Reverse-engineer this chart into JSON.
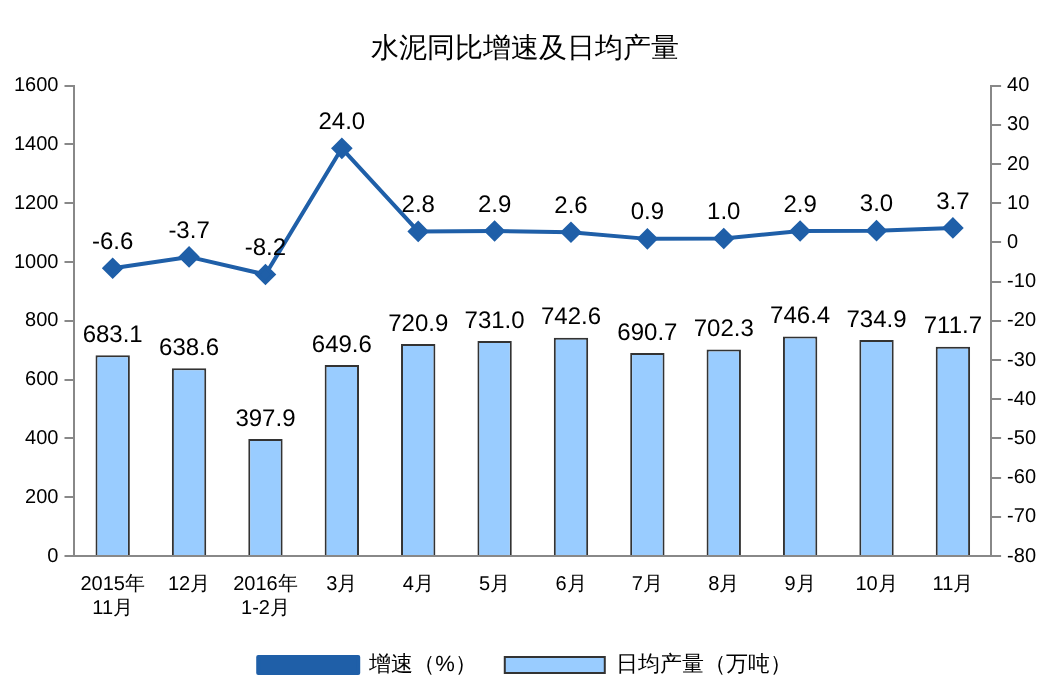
{
  "chart_data": {
    "type": "bar",
    "title": "水泥同比增速及日均产量",
    "categories": [
      "2015年\n11月",
      "12月",
      "2016年\n1-2月",
      "3月",
      "4月",
      "5月",
      "6月",
      "7月",
      "8月",
      "9月",
      "10月",
      "11月"
    ],
    "series": [
      {
        "name": "日均产量（万吨）",
        "color": "#99ccff",
        "values": [
          683.1,
          638.6,
          397.9,
          649.6,
          720.9,
          731.0,
          742.6,
          690.7,
          702.3,
          746.4,
          734.9,
          711.7
        ],
        "value_labels": [
          "683.1",
          "638.6",
          "397.9",
          "649.6",
          "720.9",
          "731.0",
          "742.6",
          "690.7",
          "702.3",
          "746.4",
          "734.9",
          "711.7"
        ]
      },
      {
        "name": "增速（%）",
        "type": "line",
        "axis": "y2",
        "color": "#1f5fa8",
        "values": [
          -6.6,
          -3.7,
          -8.2,
          24.0,
          2.8,
          2.9,
          2.6,
          0.9,
          1.0,
          2.9,
          3.0,
          3.7
        ],
        "value_labels": [
          "-6.6",
          "-3.7",
          "-8.2",
          "24.0",
          "2.8",
          "2.9",
          "2.6",
          "0.9",
          "1.0",
          "2.9",
          "3.0",
          "3.7"
        ]
      }
    ],
    "ylim": [
      0,
      1600
    ],
    "yticks": [
      0,
      200,
      400,
      600,
      800,
      1000,
      1200,
      1400,
      1600
    ],
    "y2lim": [
      -80,
      40
    ],
    "y2ticks": [
      -80,
      -70,
      -60,
      -50,
      -40,
      -30,
      -20,
      -10,
      0,
      10,
      20,
      30,
      40
    ],
    "grid": false,
    "legend": "bottom",
    "marker": "diamond"
  }
}
